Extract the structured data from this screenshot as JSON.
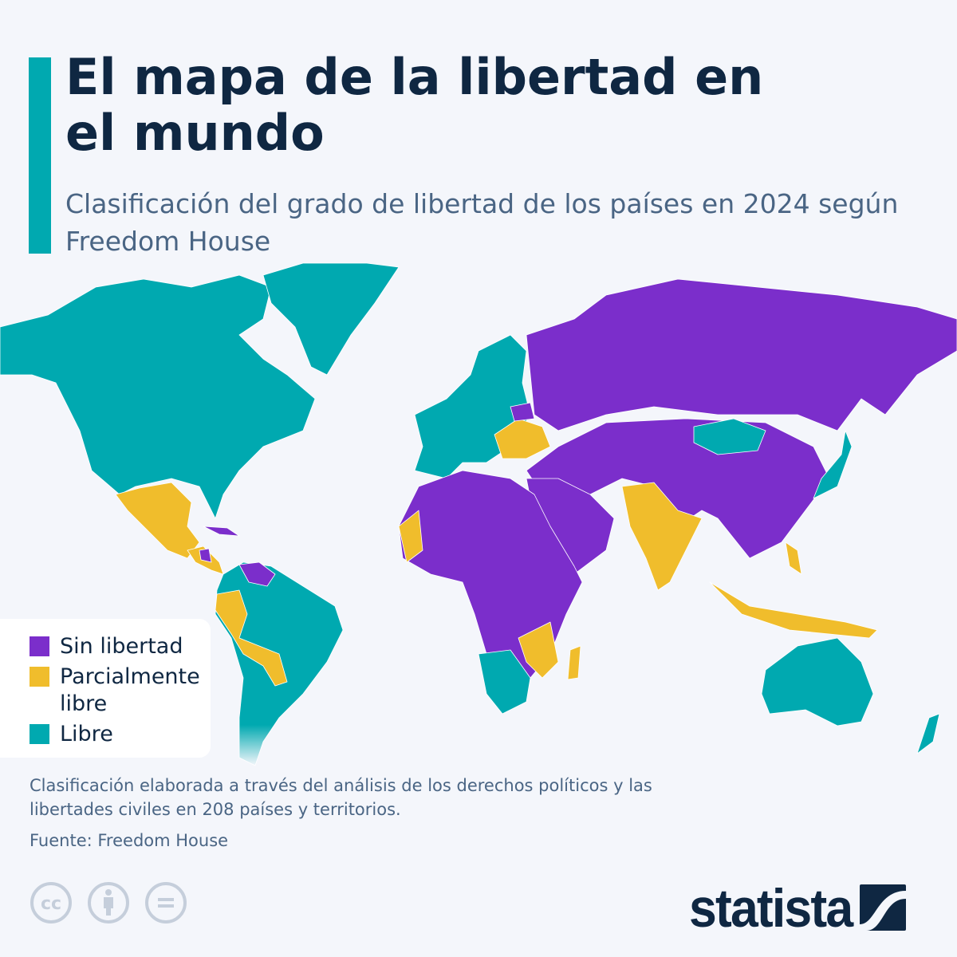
{
  "header": {
    "title": "El mapa de la libertad en el mundo",
    "subtitle": "Clasificación del grado de libertad de los países en 2024 según Freedom House"
  },
  "legend": {
    "items": [
      {
        "label": "Sin libertad",
        "color": "#7b2ecb"
      },
      {
        "label": "Parcialmente libre",
        "color": "#f0bd2c"
      },
      {
        "label": "Libre",
        "color": "#00a9b0"
      }
    ]
  },
  "footer": {
    "note": "Clasificación elaborada a través del análisis de los derechos políticos y las libertades civiles en 208 países y territorios.",
    "source": "Fuente: Freedom House",
    "license_icons": [
      "creative-commons-icon",
      "attribution-icon",
      "no-derivatives-icon"
    ],
    "brand": "statista"
  },
  "colors": {
    "background": "#f4f6fb",
    "accent": "#00a9b0",
    "title": "#0f2742",
    "text": "#4a6584"
  }
}
